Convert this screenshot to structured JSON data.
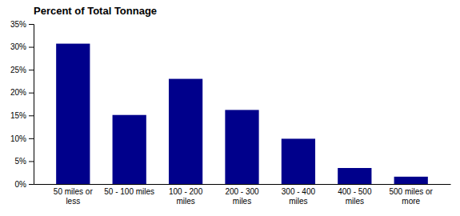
{
  "chart_data": {
    "type": "bar",
    "title": "Percent of Total Tonnage",
    "categories": [
      "50 miles or\nless",
      "50 - 100 miles",
      "100 - 200\nmiles",
      "200 - 300\nmiles",
      "300 - 400\nmiles",
      "400 - 500\nmiles",
      "500 miles or\nmore"
    ],
    "values": [
      30.7,
      15.1,
      23.0,
      16.2,
      9.9,
      3.5,
      1.6
    ],
    "color": "#00008B",
    "ylim": [
      0,
      35
    ],
    "yticks": [
      {
        "value": 0,
        "label": "0%"
      },
      {
        "value": 5,
        "label": "5%"
      },
      {
        "value": 10,
        "label": "10%"
      },
      {
        "value": 15,
        "label": "15%"
      },
      {
        "value": 20,
        "label": "20%"
      },
      {
        "value": 25,
        "label": "25%"
      },
      {
        "value": 30,
        "label": "30%"
      },
      {
        "value": 35,
        "label": "35%"
      }
    ],
    "grid": false
  }
}
